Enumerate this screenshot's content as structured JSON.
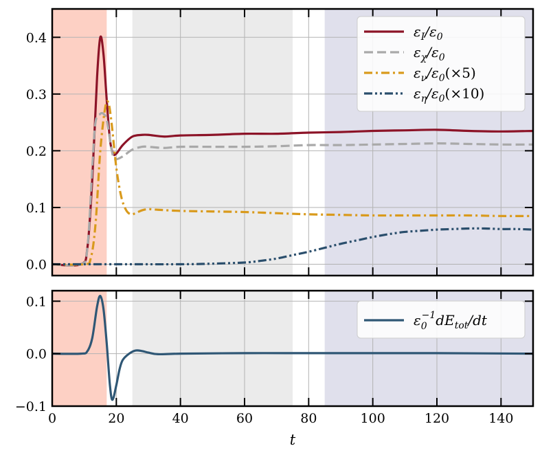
{
  "chart_data": [
    {
      "type": "line",
      "xlim": [
        0,
        150
      ],
      "ylim": [
        -0.02,
        0.45
      ],
      "xticks": [
        0,
        20,
        40,
        60,
        80,
        100,
        120,
        140
      ],
      "yticks": [
        0.0,
        0.1,
        0.2,
        0.3,
        0.4
      ],
      "ytick_labels": [
        "0.0",
        "0.1",
        "0.2",
        "0.3",
        "0.4"
      ],
      "grid": true,
      "legend_position": "upper right",
      "shaded_regions": [
        {
          "x": [
            0,
            17
          ],
          "color": "#fdd0c4"
        },
        {
          "x": [
            25,
            75
          ],
          "color": "#ebebeb"
        },
        {
          "x": [
            85,
            150
          ],
          "color": "#e0e0ec"
        }
      ],
      "series": [
        {
          "name": "εI/ε0",
          "color": "#8c1327",
          "style": "solid",
          "x": [
            0,
            9,
            11,
            12.5,
            14,
            15,
            16,
            17,
            18,
            19,
            20,
            22,
            25,
            28,
            30,
            35,
            40,
            50,
            60,
            70,
            80,
            90,
            100,
            110,
            120,
            130,
            140,
            150
          ],
          "y": [
            0,
            0,
            0.03,
            0.15,
            0.33,
            0.4,
            0.37,
            0.29,
            0.22,
            0.195,
            0.195,
            0.21,
            0.225,
            0.228,
            0.228,
            0.225,
            0.227,
            0.228,
            0.23,
            0.23,
            0.232,
            0.233,
            0.235,
            0.236,
            0.237,
            0.235,
            0.234,
            0.235
          ]
        },
        {
          "name": "εχ/ε0",
          "color": "#a9a9a9",
          "style": "dashed",
          "x": [
            0,
            9,
            11,
            12.5,
            13.5,
            15,
            16,
            17,
            18,
            19,
            20,
            22,
            25,
            28,
            30,
            35,
            40,
            50,
            60,
            70,
            80,
            90,
            100,
            110,
            120,
            130,
            140,
            150
          ],
          "y": [
            0,
            0,
            0.03,
            0.17,
            0.25,
            0.265,
            0.265,
            0.255,
            0.22,
            0.19,
            0.185,
            0.19,
            0.202,
            0.207,
            0.207,
            0.205,
            0.207,
            0.207,
            0.207,
            0.208,
            0.21,
            0.21,
            0.211,
            0.212,
            0.213,
            0.212,
            0.211,
            0.211
          ]
        },
        {
          "name": "εν/ε0(×5)",
          "color": "#d99a1c",
          "style": "dashdot",
          "x": [
            0,
            10,
            12,
            13.5,
            15,
            16.5,
            17.5,
            18.5,
            20,
            21.5,
            23,
            24.5,
            26,
            28,
            30,
            33,
            40,
            50,
            60,
            70,
            80,
            90,
            100,
            110,
            120,
            130,
            140,
            150
          ],
          "y": [
            0,
            0,
            0.01,
            0.07,
            0.2,
            0.275,
            0.285,
            0.25,
            0.17,
            0.12,
            0.096,
            0.088,
            0.09,
            0.095,
            0.097,
            0.096,
            0.094,
            0.093,
            0.092,
            0.09,
            0.088,
            0.087,
            0.086,
            0.086,
            0.086,
            0.086,
            0.085,
            0.085
          ]
        },
        {
          "name": "εη/ε0(×10)",
          "color": "#2a4e6c",
          "style": "dashdotdot",
          "x": [
            0,
            20,
            40,
            50,
            60,
            65,
            70,
            75,
            80,
            85,
            90,
            95,
            100,
            105,
            110,
            115,
            120,
            125,
            130,
            135,
            140,
            145,
            150
          ],
          "y": [
            0,
            0,
            0,
            0.001,
            0.003,
            0.006,
            0.01,
            0.016,
            0.022,
            0.029,
            0.036,
            0.042,
            0.048,
            0.053,
            0.057,
            0.059,
            0.061,
            0.062,
            0.063,
            0.063,
            0.062,
            0.062,
            0.061
          ]
        }
      ]
    },
    {
      "type": "line",
      "xlim": [
        0,
        150
      ],
      "ylim": [
        -0.1,
        0.12
      ],
      "xticks": [
        0,
        20,
        40,
        60,
        80,
        100,
        120,
        140
      ],
      "xtick_labels": [
        "0",
        "20",
        "40",
        "60",
        "80",
        "100",
        "120",
        "140"
      ],
      "yticks": [
        -0.1,
        0.0,
        0.1
      ],
      "ytick_labels": [
        "−0.1",
        "0.0",
        "0.1"
      ],
      "xlabel": "t",
      "grid": true,
      "legend_position": "upper right",
      "shaded_regions": [
        {
          "x": [
            0,
            17
          ],
          "color": "#fdd0c4"
        },
        {
          "x": [
            25,
            75
          ],
          "color": "#ebebeb"
        },
        {
          "x": [
            85,
            150
          ],
          "color": "#e0e0ec"
        }
      ],
      "series": [
        {
          "name": "ε0−1dEtot/dt",
          "color": "#2f5775",
          "style": "solid",
          "x": [
            0,
            9,
            11,
            12.5,
            14,
            15,
            16,
            17,
            18,
            18.8,
            20,
            21,
            22,
            24,
            26,
            28,
            30,
            33,
            40,
            60,
            80,
            100,
            120,
            150
          ],
          "y": [
            0,
            0,
            0.005,
            0.03,
            0.09,
            0.11,
            0.085,
            0.02,
            -0.06,
            -0.088,
            -0.06,
            -0.03,
            -0.012,
            0.0,
            0.006,
            0.005,
            0.002,
            -0.001,
            0.0,
            0.001,
            0.001,
            0.001,
            0.001,
            0.0
          ]
        }
      ]
    }
  ]
}
